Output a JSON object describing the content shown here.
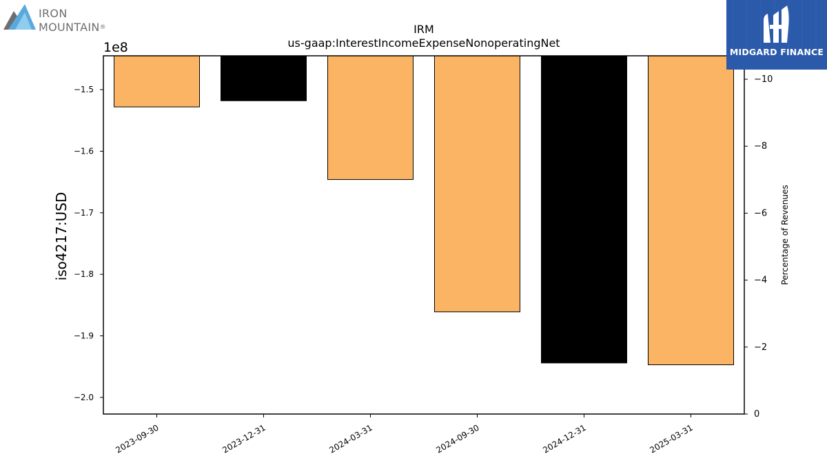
{
  "logos": {
    "left": {
      "line1": "IRON",
      "line2": "MOUNTAIN",
      "mark": "®"
    },
    "right": {
      "name": "MIDGARD FINANCE",
      "icon": "midgard-logo-icon"
    }
  },
  "chart_data": {
    "type": "bar",
    "title": "IRM",
    "subtitle": "us-gaap:InterestIncomeExpenseNonoperatingNet",
    "ylabel": "iso4217:USD",
    "y2label": "Percentage of Revenues",
    "y_offset_text": "1e8",
    "categories": [
      "2023-09-30",
      "2023-12-31",
      "2024-03-31",
      "2024-09-30",
      "2024-12-31",
      "2025-03-31"
    ],
    "values": [
      -152800000,
      -151800000,
      -164600000,
      -186100000,
      -194400000,
      -194700000
    ],
    "bar_colors": [
      "#fbb464",
      "#000000",
      "#fbb464",
      "#fbb464",
      "#000000",
      "#fbb464"
    ],
    "ylim": [
      -202700000,
      -144500000
    ],
    "y_ticks": [
      -150000000,
      -160000000,
      -170000000,
      -180000000,
      -190000000,
      -200000000
    ],
    "y_tick_labels": [
      "−1.5",
      "−1.6",
      "−1.7",
      "−1.8",
      "−1.9",
      "−2.0"
    ],
    "y2lim": [
      0,
      -10.7
    ],
    "y2_ticks": [
      -10,
      -8,
      -6,
      -4,
      -2,
      0
    ],
    "y2_tick_labels": [
      "−10",
      "−8",
      "−6",
      "−4",
      "−2",
      "0"
    ],
    "grid": false
  }
}
